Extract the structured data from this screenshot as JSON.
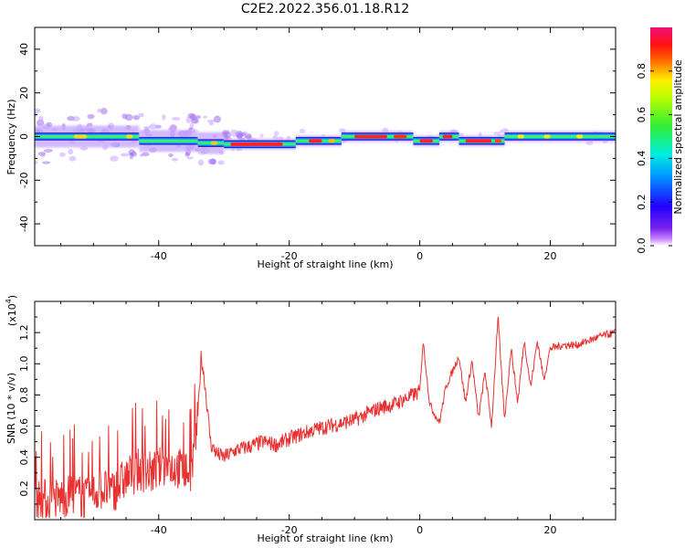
{
  "title": "C2E2.2022.356.01.18.R12",
  "chart_data": [
    {
      "type": "heatmap",
      "xlabel": "Height of straight line (km)",
      "ylabel": "Frequency (Hz)",
      "xlim": [
        -59,
        30
      ],
      "ylim": [
        -50,
        50
      ],
      "xticks": [
        -40,
        -20,
        0,
        20
      ],
      "yticks": [
        -40,
        -20,
        0,
        20,
        40
      ],
      "colorbar": {
        "label": "Normalized spectral amplitude",
        "range": [
          0,
          1
        ],
        "ticks": [
          0.0,
          0.2,
          0.4,
          0.6,
          0.8
        ],
        "tick_labels": [
          "0.0",
          "0.2",
          "0.4",
          "0.6",
          "0.8"
        ]
      },
      "ridge_frequency_hz": [
        {
          "x_start": -59,
          "x_end": -43,
          "freq": 0
        },
        {
          "x_start": -43,
          "x_end": -34,
          "freq": -2
        },
        {
          "x_start": -34,
          "x_end": -30,
          "freq": -3
        },
        {
          "x_start": -30,
          "x_end": -19,
          "freq": -3.5
        },
        {
          "x_start": -19,
          "x_end": -12,
          "freq": -2
        },
        {
          "x_start": -12,
          "x_end": -1,
          "freq": 0
        },
        {
          "x_start": -1,
          "x_end": 3,
          "freq": -2
        },
        {
          "x_start": 3,
          "x_end": 6,
          "freq": 0
        },
        {
          "x_start": 6,
          "x_end": 13,
          "freq": -2
        },
        {
          "x_start": 13,
          "x_end": 30,
          "freq": 0
        }
      ]
    },
    {
      "type": "line",
      "xlabel": "Height of straight line (km)",
      "ylabel": "SNR (10 * v/v)",
      "scale_label": "(x10^4)",
      "xlim": [
        -59,
        30
      ],
      "ylim": [
        0,
        1.4
      ],
      "xticks": [
        -40,
        -20,
        0,
        20
      ],
      "yticks": [
        0.2,
        0.4,
        0.6,
        0.8,
        1.0,
        1.2
      ],
      "ytick_labels": [
        "0.2",
        "0.4",
        "0.6",
        "0.8",
        "1.0",
        "1.2"
      ],
      "series": [
        {
          "color": "#e83232",
          "x": [
            -59,
            -57,
            -55,
            -53,
            -51,
            -49,
            -47,
            -45,
            -43,
            -41,
            -39,
            -37,
            -35,
            -34,
            -33.5,
            -33,
            -32,
            -31,
            -30,
            -28,
            -26,
            -24,
            -22,
            -20,
            -18,
            -16,
            -14,
            -12,
            -10,
            -8,
            -6,
            -4,
            -2,
            0,
            0.5,
            1,
            1.5,
            2,
            3,
            4,
            5,
            6,
            7,
            8,
            9,
            10,
            11,
            12,
            12.5,
            13,
            14,
            15,
            16,
            17,
            18,
            19,
            20,
            22,
            24,
            26,
            28,
            30
          ],
          "y": [
            0.15,
            0.12,
            0.14,
            0.17,
            0.13,
            0.2,
            0.18,
            0.27,
            0.32,
            0.3,
            0.35,
            0.33,
            0.3,
            0.65,
            1.05,
            0.9,
            0.48,
            0.42,
            0.4,
            0.45,
            0.47,
            0.5,
            0.48,
            0.52,
            0.55,
            0.58,
            0.6,
            0.62,
            0.64,
            0.68,
            0.72,
            0.74,
            0.78,
            0.82,
            1.15,
            0.95,
            0.75,
            0.7,
            0.62,
            0.85,
            0.95,
            1.05,
            0.75,
            1.02,
            0.65,
            0.95,
            0.6,
            1.3,
            0.95,
            0.65,
            1.1,
            0.75,
            1.15,
            0.85,
            1.15,
            0.9,
            1.1,
            1.12,
            1.12,
            1.15,
            1.18,
            1.2
          ]
        }
      ]
    }
  ]
}
